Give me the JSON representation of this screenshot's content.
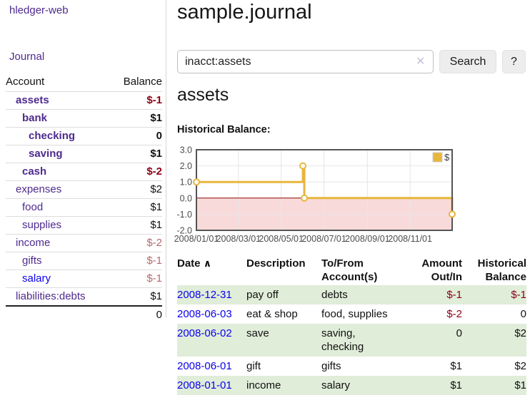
{
  "app": {
    "title": "hledger-web",
    "nav_journal": "Journal"
  },
  "colors": {
    "link_purple": "#4E2A8E",
    "link_blue": "#0B00EE",
    "negative_red": "#8B0016",
    "negative_dim_red": "#B5696E",
    "row_stripe_green": "#E0EDD9",
    "chart_line_gold": "#E7B63C",
    "chart_negative_fill_pink": "#F9DADA",
    "chart_zero_line_red": "#8B0000"
  },
  "sidebar": {
    "header": {
      "account": "Account",
      "balance": "Balance"
    },
    "accounts": [
      {
        "name": "assets",
        "level": 1,
        "bold": true,
        "link_style": "visited",
        "balance": "$-1",
        "balance_style": "neg"
      },
      {
        "name": "bank",
        "level": 2,
        "bold": true,
        "link_style": "visited",
        "balance": "$1",
        "balance_style": "pos"
      },
      {
        "name": "checking",
        "level": 3,
        "bold": true,
        "link_style": "visited",
        "balance": "0",
        "balance_style": "pos"
      },
      {
        "name": "saving",
        "level": 3,
        "bold": true,
        "link_style": "visited",
        "balance": "$1",
        "balance_style": "pos"
      },
      {
        "name": "cash",
        "level": 2,
        "bold": true,
        "link_style": "visited",
        "balance": "$-2",
        "balance_style": "neg"
      },
      {
        "name": "expenses",
        "level": 1,
        "bold": false,
        "link_style": "visited",
        "balance": "$2",
        "balance_style": "pos"
      },
      {
        "name": "food",
        "level": 2,
        "bold": false,
        "link_style": "visited",
        "balance": "$1",
        "balance_style": "pos"
      },
      {
        "name": "supplies",
        "level": 2,
        "bold": false,
        "link_style": "visited",
        "balance": "$1",
        "balance_style": "pos"
      },
      {
        "name": "income",
        "level": 1,
        "bold": false,
        "link_style": "visited",
        "balance": "$-2",
        "balance_style": "negdim"
      },
      {
        "name": "gifts",
        "level": 2,
        "bold": false,
        "link_style": "visited",
        "balance": "$-1",
        "balance_style": "negdim"
      },
      {
        "name": "salary",
        "level": 2,
        "bold": false,
        "link_style": "unvisited",
        "balance": "$-1",
        "balance_style": "negdim"
      },
      {
        "name": "liabilities:debts",
        "level": 1,
        "bold": false,
        "link_style": "visited",
        "balance": "$1",
        "balance_style": "pos"
      }
    ],
    "total": "0"
  },
  "header": {
    "journal_title": "sample.journal"
  },
  "search": {
    "value": "inacct:assets",
    "clear_icon": "✕",
    "button_label": "Search",
    "help_label": "?"
  },
  "account_page": {
    "title": "assets",
    "chart_heading": "Historical Balance:"
  },
  "chart_data": {
    "type": "line",
    "step": true,
    "title": "Historical Balance",
    "series": [
      {
        "name": "$",
        "color": "#E7B63C",
        "points": [
          [
            "2008-01-01",
            1
          ],
          [
            "2008-06-01",
            2
          ],
          [
            "2008-06-03",
            0
          ],
          [
            "2008-12-31",
            -1
          ]
        ]
      }
    ],
    "xrange": [
      "2008-01-01",
      "2008-12-31"
    ],
    "ylim": [
      -2,
      3
    ],
    "yticks": [
      3.0,
      2.0,
      1.0,
      0.0,
      -1.0,
      -2.0
    ],
    "xticks": [
      "2008/01/01",
      "2008/03/01",
      "2008/05/01",
      "2008/07/01",
      "2008/09/01",
      "2008/11/01"
    ],
    "legend": {
      "label": "$",
      "position": "top-right"
    },
    "grid": true,
    "negative_fill": "#F9DADA",
    "zero_line_color": "#8B0000",
    "border_color": "#545454",
    "grid_color": "#E6E6E6",
    "tick_color": "#4D4D4D"
  },
  "register": {
    "columns": {
      "date": "Date",
      "sort_icon": "∧",
      "description": "Description",
      "tofrom1": "To/From",
      "tofrom2": "Account(s)",
      "amount1": "Amount",
      "amount2": "Out/In",
      "hist1": "Historical",
      "hist2": "Balance"
    },
    "rows": [
      {
        "date": "2008-12-31",
        "description": "pay off",
        "accounts": "debts",
        "amount": "$-1",
        "amount_neg": true,
        "balance": "$-1",
        "balance_neg": true,
        "stripe": true
      },
      {
        "date": "2008-06-03",
        "description": "eat & shop",
        "accounts": "food, supplies",
        "amount": "$-2",
        "amount_neg": true,
        "balance": "0",
        "balance_neg": false,
        "stripe": false
      },
      {
        "date": "2008-06-02",
        "description": "save",
        "accounts": "saving, checking",
        "amount": "0",
        "amount_neg": false,
        "balance": "$2",
        "balance_neg": false,
        "stripe": true
      },
      {
        "date": "2008-06-01",
        "description": "gift",
        "accounts": "gifts",
        "amount": "$1",
        "amount_neg": false,
        "balance": "$2",
        "balance_neg": false,
        "stripe": false
      },
      {
        "date": "2008-01-01",
        "description": "income",
        "accounts": "salary",
        "amount": "$1",
        "amount_neg": false,
        "balance": "$1",
        "balance_neg": false,
        "stripe": true
      }
    ]
  }
}
